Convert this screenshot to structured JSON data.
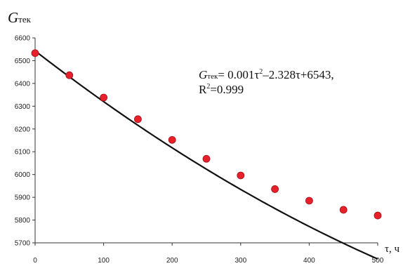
{
  "chart_data": {
    "type": "scatter",
    "ylabel_main": "G",
    "ylabel_sub": "тек",
    "xlabel": "τ, ч",
    "xlim": [
      0,
      500
    ],
    "ylim": [
      5700,
      6600
    ],
    "x_ticks": [
      "0",
      "100",
      "200",
      "300",
      "400",
      "500"
    ],
    "y_ticks": [
      "5700",
      "5800",
      "5900",
      "6000",
      "6100",
      "6200",
      "6300",
      "6400",
      "6500",
      "6600"
    ],
    "grid": false,
    "point_color": "#e8202a",
    "line_color": "#111111",
    "points": {
      "x": [
        0,
        50,
        100,
        150,
        200,
        250,
        300,
        350,
        400,
        450,
        500
      ],
      "y": [
        6533,
        6436,
        6338,
        6243,
        6152,
        6069,
        5996,
        5936,
        5885,
        5845,
        5820
      ]
    },
    "trendline": {
      "type": "polynomial",
      "coefficients": [
        0.001,
        -2.328,
        6543
      ],
      "equation_var": "G",
      "equation_var_sub": "тек",
      "equation_part1": "= 0.001τ",
      "equation_sup1": "2",
      "equation_part2": "–2.328τ+6543,",
      "r2_prefix": "R",
      "r2_sup": "2",
      "r2_value": "=0.999"
    }
  }
}
